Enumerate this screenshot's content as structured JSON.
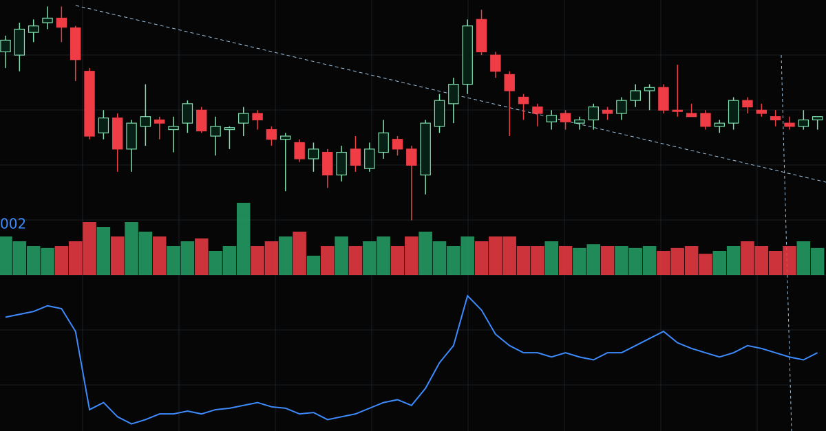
{
  "label": "002",
  "chart_data": [
    {
      "type": "candlestick",
      "up_color": "#26a269",
      "down_color": "#f03c44",
      "ylim": [
        290,
        640
      ],
      "open": [
        560,
        555,
        590,
        605,
        612,
        597,
        530,
        435,
        458,
        410,
        445,
        455,
        440,
        450,
        470,
        430,
        440,
        450,
        465,
        440,
        425,
        420,
        395,
        405,
        370,
        410,
        380,
        405,
        425,
        410,
        370,
        445,
        480,
        510,
        610,
        555,
        525,
        490,
        475,
        452,
        465,
        450,
        455,
        470,
        465,
        485,
        500,
        505,
        470,
        465,
        465,
        445,
        450,
        485,
        470,
        460,
        450,
        445,
        455
      ],
      "high": [
        585,
        605,
        610,
        630,
        630,
        600,
        535,
        470,
        465,
        455,
        510,
        460,
        460,
        485,
        475,
        460,
        445,
        475,
        470,
        445,
        435,
        425,
        420,
        410,
        415,
        430,
        420,
        455,
        430,
        415,
        455,
        495,
        520,
        610,
        625,
        560,
        530,
        495,
        480,
        470,
        470,
        460,
        480,
        475,
        490,
        510,
        510,
        510,
        540,
        480,
        470,
        455,
        490,
        490,
        480,
        470,
        460,
        470,
        460
      ],
      "low": [
        535,
        530,
        575,
        595,
        575,
        515,
        425,
        425,
        375,
        375,
        415,
        425,
        405,
        435,
        435,
        400,
        410,
        430,
        440,
        415,
        345,
        390,
        375,
        350,
        360,
        375,
        375,
        395,
        400,
        300,
        340,
        435,
        450,
        495,
        555,
        520,
        430,
        455,
        445,
        440,
        440,
        440,
        440,
        455,
        455,
        475,
        470,
        465,
        460,
        460,
        440,
        435,
        440,
        465,
        460,
        445,
        440,
        440,
        440
      ],
      "close": [
        578,
        595,
        600,
        612,
        598,
        548,
        430,
        458,
        410,
        450,
        460,
        450,
        445,
        480,
        438,
        445,
        443,
        465,
        455,
        425,
        430,
        395,
        410,
        370,
        405,
        385,
        410,
        435,
        410,
        385,
        450,
        485,
        510,
        600,
        560,
        530,
        500,
        480,
        465,
        462,
        452,
        455,
        475,
        465,
        485,
        500,
        505,
        470,
        468,
        460,
        445,
        450,
        485,
        475,
        465,
        455,
        445,
        455,
        460
      ]
    },
    {
      "type": "bar",
      "ylim": [
        0,
        100
      ],
      "values": [
        40,
        35,
        30,
        28,
        30,
        35,
        55,
        50,
        40,
        55,
        45,
        40,
        30,
        35,
        38,
        25,
        30,
        75,
        30,
        35,
        40,
        45,
        20,
        30,
        40,
        30,
        35,
        40,
        30,
        40,
        45,
        35,
        30,
        40,
        35,
        40,
        40,
        30,
        30,
        35,
        30,
        28,
        32,
        30,
        30,
        28,
        30,
        25,
        28,
        30,
        22,
        25,
        30,
        35,
        30,
        25,
        30,
        35,
        28
      ]
    },
    {
      "type": "line",
      "color": "#3d8bfd",
      "ylim": [
        0,
        100
      ],
      "values": [
        80,
        82,
        84,
        88,
        86,
        70,
        15,
        20,
        10,
        5,
        8,
        12,
        12,
        14,
        12,
        15,
        16,
        18,
        20,
        17,
        16,
        12,
        13,
        8,
        10,
        12,
        16,
        20,
        22,
        18,
        30,
        48,
        60,
        95,
        85,
        68,
        60,
        55,
        55,
        52,
        55,
        52,
        50,
        55,
        55,
        60,
        65,
        70,
        62,
        58,
        55,
        52,
        55,
        60,
        58,
        55,
        52,
        50,
        55
      ]
    }
  ]
}
